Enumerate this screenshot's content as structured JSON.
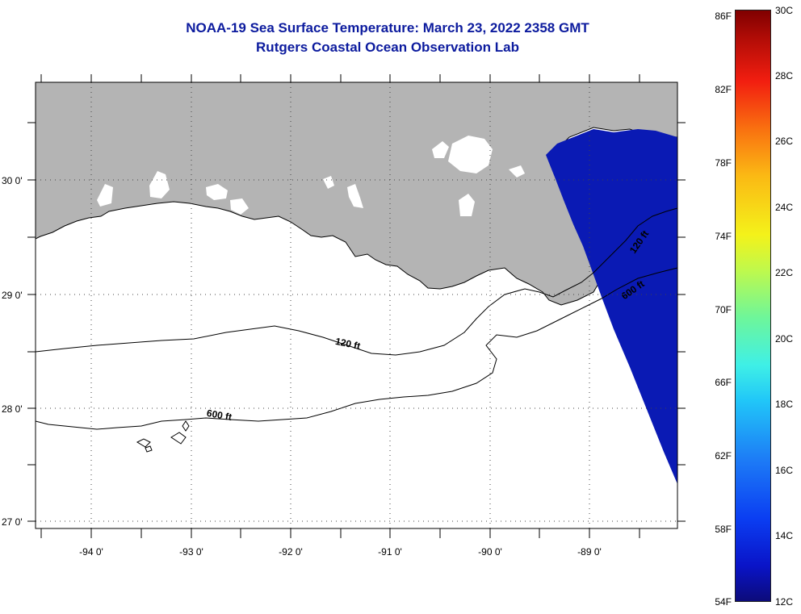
{
  "title": "NOAA-19 Sea Surface Temperature:  March 23, 2022 2358 GMT",
  "subtitle": "Rutgers Coastal Ocean Observation Lab",
  "lat_labels": [
    "30 0'",
    "29 0'",
    "28 0'",
    "27 0'"
  ],
  "lon_labels": [
    "-94 0'",
    "-93 0'",
    "-92 0'",
    "-91 0'",
    "-90 0'",
    "-89 0'"
  ],
  "contours": {
    "shallow": "120 ft",
    "deep": "600 ft"
  },
  "colorbar": {
    "fahrenheit": [
      "86F",
      "82F",
      "78F",
      "74F",
      "70F",
      "66F",
      "62F",
      "58F",
      "54F"
    ],
    "celsius": [
      "30C",
      "28C",
      "26C",
      "24C",
      "22C",
      "20C",
      "18C",
      "16C",
      "14C",
      "12C"
    ]
  },
  "colors": {
    "land": "#b4b4b4",
    "sst_cold": "#0a1ab4",
    "title": "#0c1b9e"
  }
}
